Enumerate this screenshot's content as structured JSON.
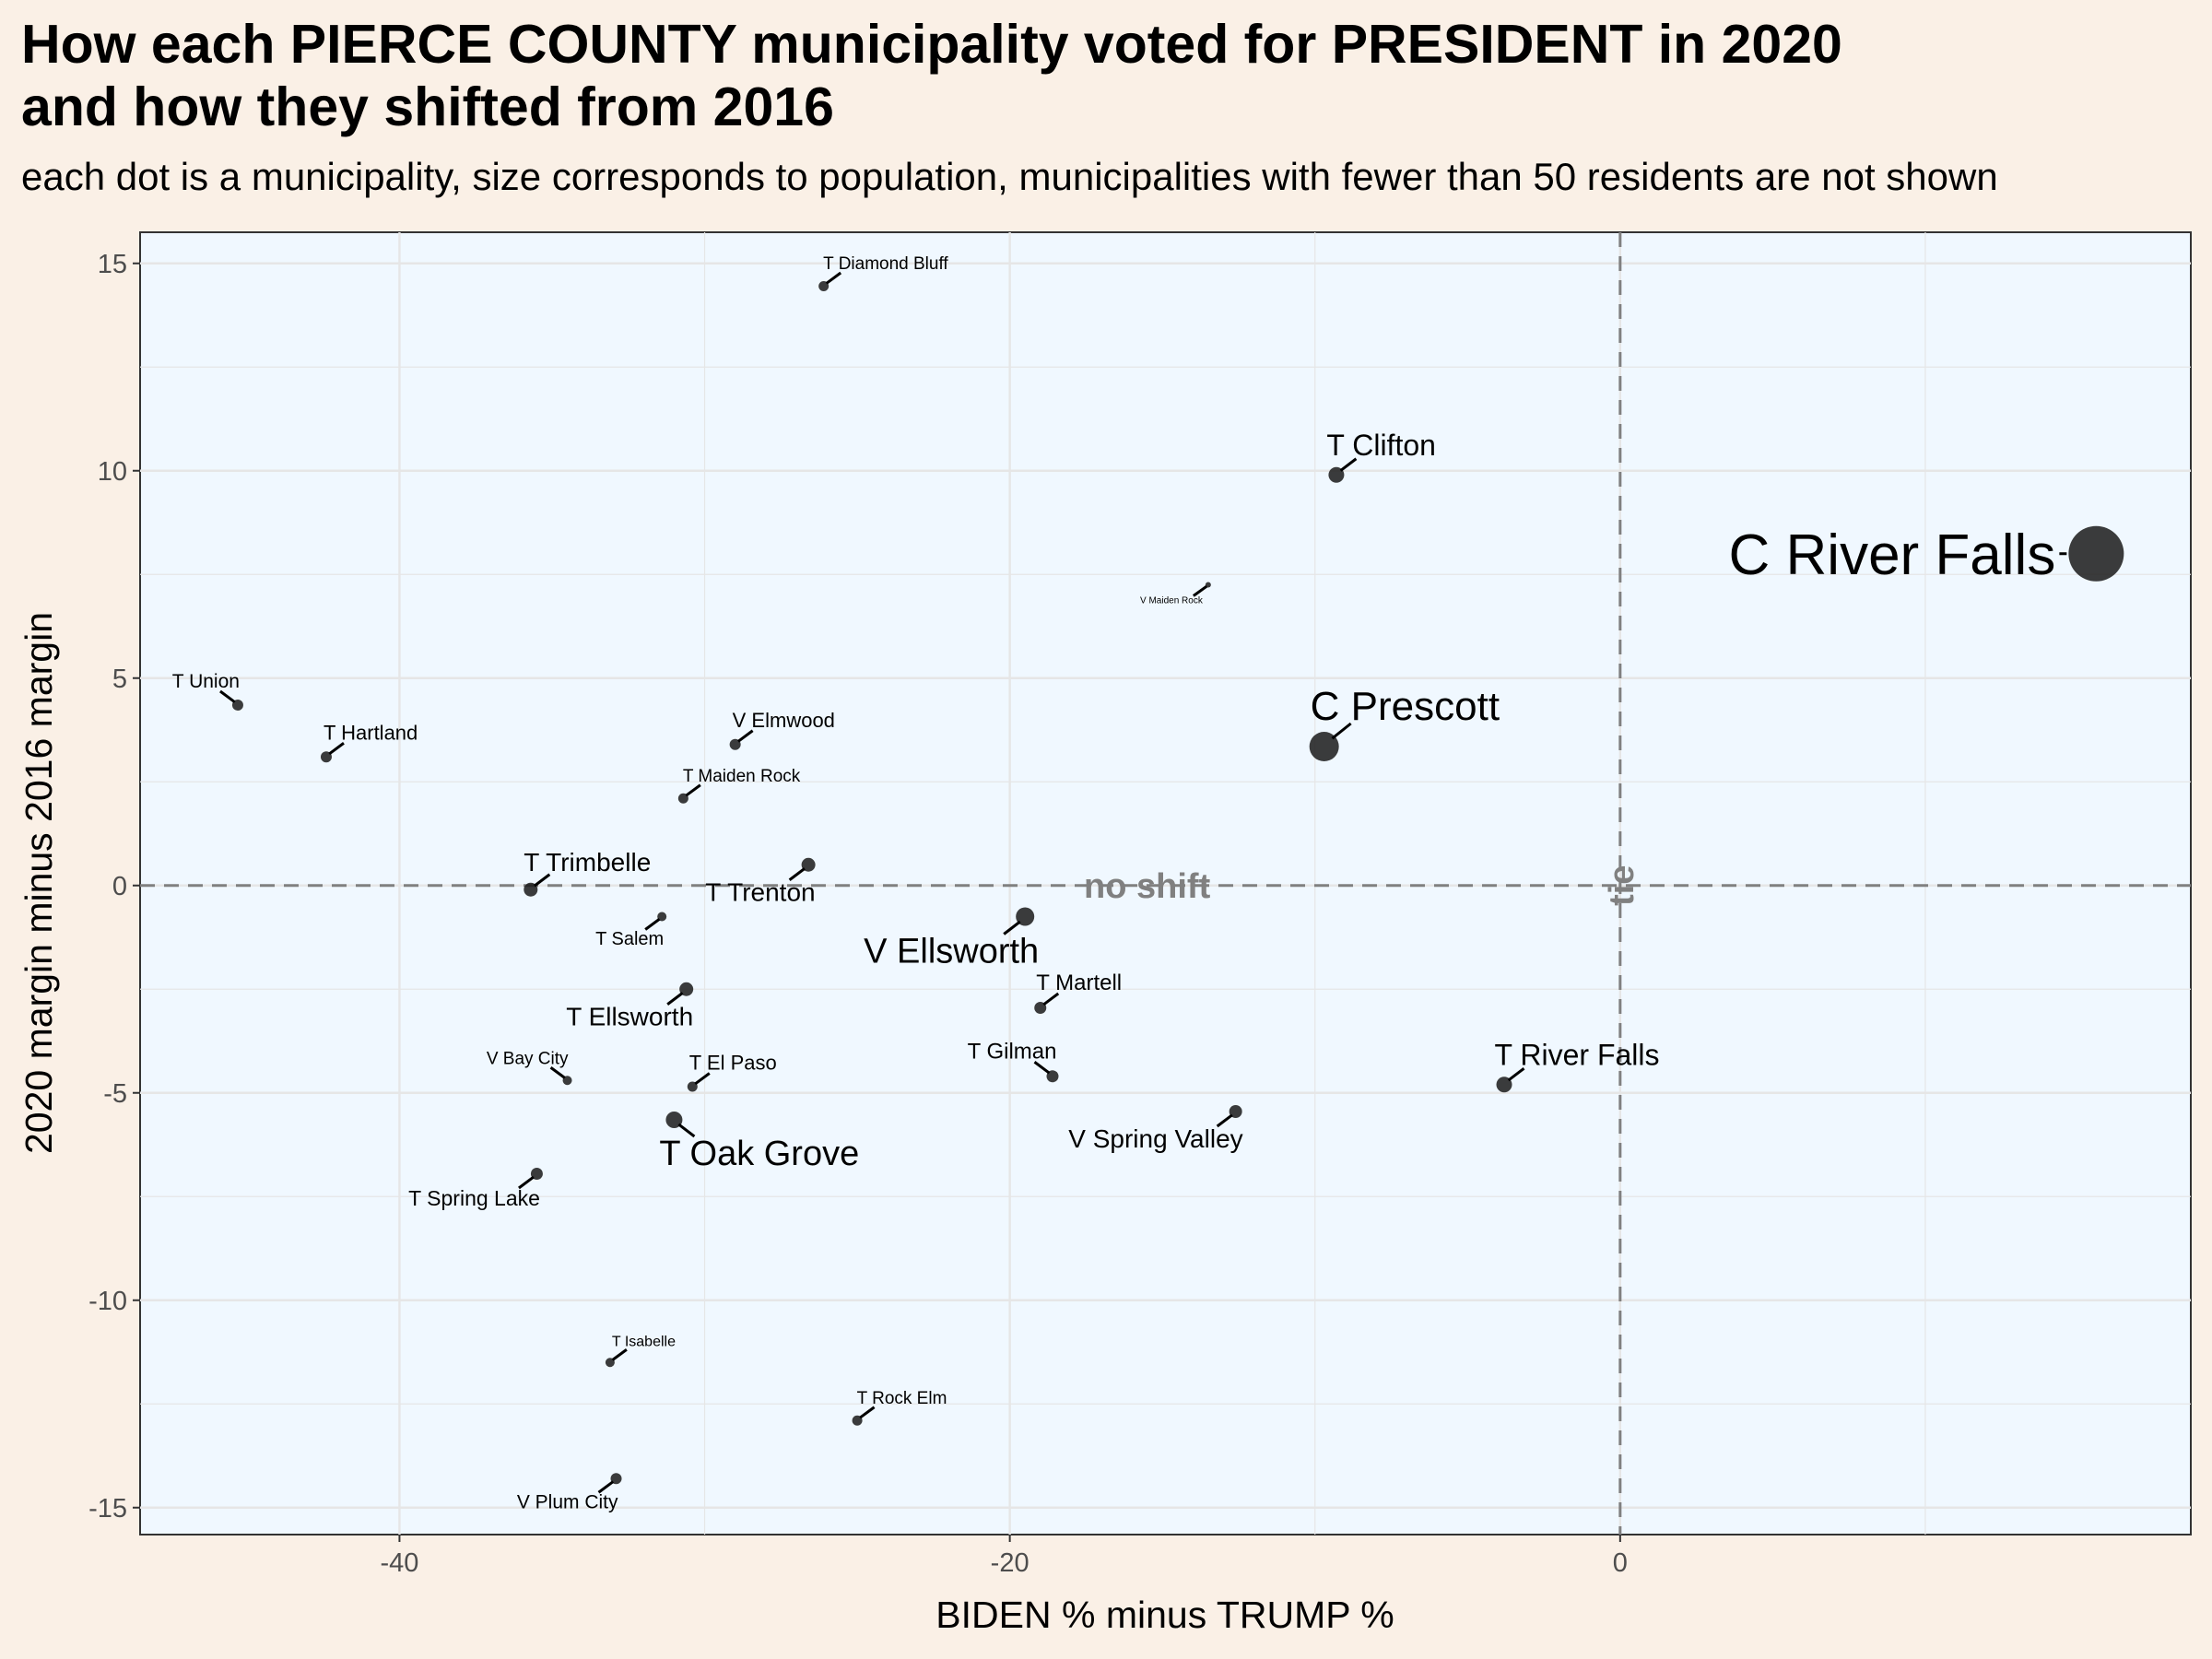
{
  "title": "How each PIERCE COUNTY municipality voted for PRESIDENT in 2020\nand how they shifted from 2016",
  "subtitle": "each dot is a municipality, size corresponds to population, municipalities with fewer than 50 residents are not shown",
  "colors": {
    "page_background": "#faf0e6",
    "panel_background": "#f0f8ff",
    "grid": "#e6e6e6",
    "point": "#1a1a1a",
    "reference_line": "#808080"
  },
  "chart_data": {
    "type": "scatter",
    "xlabel": "BIDEN % minus TRUMP %",
    "ylabel": "2020 margin minus 2016 margin",
    "xlim": [
      -48.5,
      18.7
    ],
    "ylim": [
      -15.65,
      15.75
    ],
    "x_ticks": [
      -40,
      -20,
      0
    ],
    "y_ticks": [
      -15,
      -10,
      -5,
      0,
      5,
      10,
      15
    ],
    "x_tick_labels": [
      "-40",
      "-20",
      "0"
    ],
    "y_tick_labels": [
      "-15",
      "-10",
      "-5",
      "0",
      "5",
      "10",
      "15"
    ],
    "grid": true,
    "reference_lines": [
      {
        "orientation": "horizontal",
        "value": 0,
        "style": "dashed",
        "label": "no shift"
      },
      {
        "orientation": "vertical",
        "value": 0,
        "style": "dashed",
        "label": "tie"
      }
    ],
    "points": [
      {
        "label": "C River Falls",
        "x": 15.6,
        "y": 8.0,
        "size": 60,
        "label_size": 62,
        "label_pos": "left"
      },
      {
        "label": "T Clifton",
        "x": -9.3,
        "y": 9.9,
        "size": 17,
        "label_size": 32,
        "label_pos": "above-right"
      },
      {
        "label": "V Maiden Rock",
        "x": -13.5,
        "y": 7.25,
        "size": 6,
        "label_size": 10,
        "label_pos": "below-left"
      },
      {
        "label": "C Prescott",
        "x": -9.7,
        "y": 3.35,
        "size": 32,
        "label_size": 44,
        "label_pos": "above-right"
      },
      {
        "label": "T Diamond Bluff",
        "x": -26.1,
        "y": 14.45,
        "size": 11,
        "label_size": 19,
        "label_pos": "above-right"
      },
      {
        "label": "T Union",
        "x": -45.3,
        "y": 4.35,
        "size": 12,
        "label_size": 21,
        "label_pos": "above-left"
      },
      {
        "label": "T Hartland",
        "x": -42.4,
        "y": 3.1,
        "size": 12,
        "label_size": 22,
        "label_pos": "above-right"
      },
      {
        "label": "V Elmwood",
        "x": -29.0,
        "y": 3.4,
        "size": 12,
        "label_size": 22,
        "label_pos": "above-right"
      },
      {
        "label": "T Maiden Rock",
        "x": -30.7,
        "y": 2.1,
        "size": 11,
        "label_size": 19,
        "label_pos": "above-right"
      },
      {
        "label": "T Trimbelle",
        "x": -35.7,
        "y": -0.1,
        "size": 15,
        "label_size": 28,
        "label_pos": "above-right"
      },
      {
        "label": "T Trenton",
        "x": -26.6,
        "y": 0.5,
        "size": 15,
        "label_size": 28,
        "label_pos": "below-left"
      },
      {
        "label": "T Salem",
        "x": -31.4,
        "y": -0.75,
        "size": 10,
        "label_size": 20,
        "label_pos": "below-left"
      },
      {
        "label": "V Ellsworth",
        "x": -19.5,
        "y": -0.75,
        "size": 20,
        "label_size": 38,
        "label_pos": "below-left"
      },
      {
        "label": "T Ellsworth",
        "x": -30.6,
        "y": -2.5,
        "size": 15,
        "label_size": 28,
        "label_pos": "below-left"
      },
      {
        "label": "T Martell",
        "x": -19.0,
        "y": -2.95,
        "size": 13,
        "label_size": 24,
        "label_pos": "above-right"
      },
      {
        "label": "V Bay City",
        "x": -34.5,
        "y": -4.7,
        "size": 10,
        "label_size": 19,
        "label_pos": "above-left"
      },
      {
        "label": "T El Paso",
        "x": -30.4,
        "y": -4.85,
        "size": 11,
        "label_size": 22,
        "label_pos": "above-right"
      },
      {
        "label": "T Gilman",
        "x": -18.6,
        "y": -4.6,
        "size": 13,
        "label_size": 24,
        "label_pos": "above-left"
      },
      {
        "label": "T River Falls",
        "x": -3.8,
        "y": -4.8,
        "size": 17,
        "label_size": 32,
        "label_pos": "above-right"
      },
      {
        "label": "V Spring Valley",
        "x": -12.6,
        "y": -5.45,
        "size": 14,
        "label_size": 28,
        "label_pos": "below-left"
      },
      {
        "label": "T Oak Grove",
        "x": -31.0,
        "y": -5.65,
        "size": 18,
        "label_size": 38,
        "label_pos": "below-right"
      },
      {
        "label": "T Spring Lake",
        "x": -35.5,
        "y": -6.95,
        "size": 13,
        "label_size": 23,
        "label_pos": "below-left"
      },
      {
        "label": "T Isabelle",
        "x": -33.1,
        "y": -11.5,
        "size": 10,
        "label_size": 16,
        "label_pos": "above-right"
      },
      {
        "label": "T Rock Elm",
        "x": -25.0,
        "y": -12.9,
        "size": 11,
        "label_size": 19,
        "label_pos": "above-right"
      },
      {
        "label": "V Plum City",
        "x": -32.9,
        "y": -14.3,
        "size": 12,
        "label_size": 21,
        "label_pos": "below-left"
      }
    ]
  }
}
